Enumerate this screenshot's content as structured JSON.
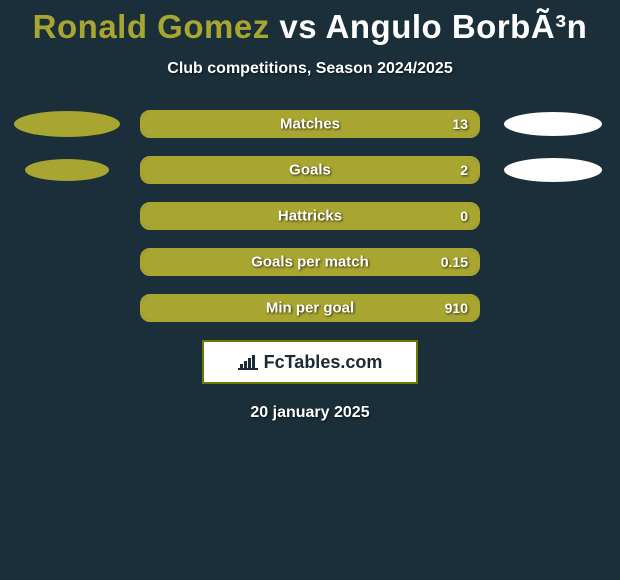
{
  "headline": {
    "player1": "Ronald Gomez",
    "vs": "vs",
    "player2": "Angulo BorbÃ³n"
  },
  "subtitle": "Club competitions, Season 2024/2025",
  "colors": {
    "p1": "#a8a530",
    "p2": "#ffffff",
    "bg": "#1a2f3a",
    "bar_border": "#a8a530",
    "logo_border": "#6a7a00"
  },
  "ellipse_sizes": {
    "row0": {
      "left_w": 106,
      "left_h": 26,
      "right_w": 98,
      "right_h": 24
    },
    "row1": {
      "left_w": 84,
      "left_h": 22,
      "right_w": 98,
      "right_h": 24
    }
  },
  "stats": [
    {
      "label": "Matches",
      "left_val": "",
      "right_val": "13",
      "left_fill_pct": 100,
      "right_fill_pct": 0,
      "show_ellipses": true,
      "ellipse_key": "row0"
    },
    {
      "label": "Goals",
      "left_val": "",
      "right_val": "2",
      "left_fill_pct": 100,
      "right_fill_pct": 0,
      "show_ellipses": true,
      "ellipse_key": "row1"
    },
    {
      "label": "Hattricks",
      "left_val": "",
      "right_val": "0",
      "left_fill_pct": 100,
      "right_fill_pct": 0,
      "show_ellipses": false
    },
    {
      "label": "Goals per match",
      "left_val": "",
      "right_val": "0.15",
      "left_fill_pct": 100,
      "right_fill_pct": 0,
      "show_ellipses": false
    },
    {
      "label": "Min per goal",
      "left_val": "",
      "right_val": "910",
      "left_fill_pct": 100,
      "right_fill_pct": 0,
      "show_ellipses": false
    }
  ],
  "logo": {
    "text": "FcTables.com"
  },
  "date": "20 january 2025"
}
